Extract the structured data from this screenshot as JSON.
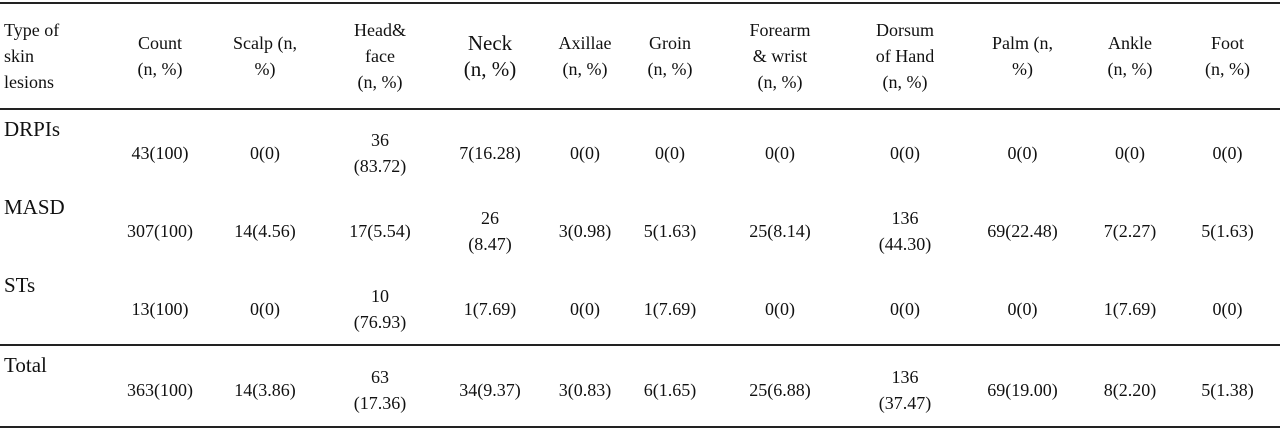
{
  "table": {
    "header": [
      "Type of\nskin\nlesions",
      "Count\n(n, %)",
      "Scalp (n,\n%)",
      "Head&\nface\n(n, %)",
      "Neck\n(n, %)",
      "Axillae\n(n, %)",
      "Groin\n(n, %)",
      "Forearm\n& wrist\n(n, %)",
      "Dorsum\nof Hand\n(n, %)",
      "Palm (n,\n%)",
      "Ankle\n(n, %)",
      "Foot\n(n, %)"
    ],
    "rows": [
      [
        "DRPIs",
        "43(100)",
        "0(0)",
        "36\n(83.72)",
        "7(16.28)",
        "0(0)",
        "0(0)",
        "0(0)",
        "0(0)",
        "0(0)",
        "0(0)",
        "0(0)"
      ],
      [
        "MASD",
        "307(100)",
        "14(4.56)",
        "17(5.54)",
        "26\n(8.47)",
        "3(0.98)",
        "5(1.63)",
        "25(8.14)",
        "136\n(44.30)",
        "69(22.48)",
        "7(2.27)",
        "5(1.63)"
      ],
      [
        "STs",
        "13(100)",
        "0(0)",
        "10\n(76.93)",
        "1(7.69)",
        "0(0)",
        "1(7.69)",
        "0(0)",
        "0(0)",
        "0(0)",
        "1(7.69)",
        "0(0)"
      ],
      [
        "Total",
        "363(100)",
        "14(3.86)",
        "63\n(17.36)",
        "34(9.37)",
        "3(0.83)",
        "6(1.65)",
        "25(6.88)",
        "136\n(37.47)",
        "69(19.00)",
        "8(2.20)",
        "5(1.38)"
      ]
    ]
  }
}
